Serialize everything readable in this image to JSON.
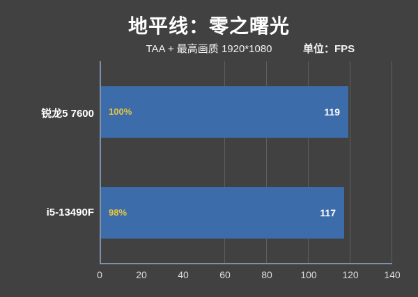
{
  "header": {
    "title": "地平线：零之曙光",
    "subtitle": "TAA + 最高画质 1920*1080",
    "unit_label": "单位：FPS"
  },
  "chart_data": {
    "type": "bar",
    "orientation": "horizontal",
    "title": "地平线：零之曙光",
    "subtitle": "TAA + 最高画质 1920*1080",
    "unit": "FPS",
    "categories": [
      "锐龙5 7600",
      "i5-13490F"
    ],
    "values": [
      119,
      117
    ],
    "percent_labels": [
      "100%",
      "98%"
    ],
    "xlabel": "",
    "ylabel": "",
    "xlim": [
      0,
      140
    ],
    "x_ticks": [
      0,
      20,
      40,
      60,
      80,
      100,
      120,
      140
    ],
    "gridlines_at": [
      60,
      80,
      100,
      120,
      140
    ],
    "legend": "none",
    "colors": {
      "background": "#414141",
      "bar": "#3d6cab",
      "percent_text": "#e6c640",
      "value_text": "#ffffff",
      "axis_line": "#7e91a6",
      "gridline": "rgba(255,255,255,0.16)",
      "tick_text": "#dddddd",
      "category_text": "#ffffff",
      "title_text": "#ffffff"
    }
  }
}
